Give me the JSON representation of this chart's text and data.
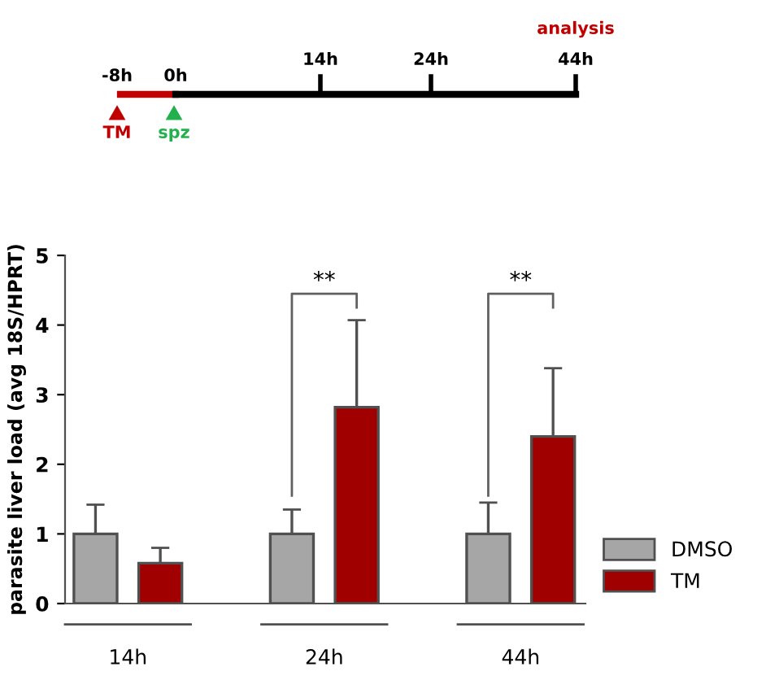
{
  "chart_data": {
    "type": "bar",
    "ylabel": "parasite liver load (avg 18S/HPRT)",
    "categories": [
      "14h",
      "24h",
      "44h"
    ],
    "series": [
      {
        "name": "DMSO",
        "color": "#a6a6a6",
        "values": [
          1,
          1,
          1
        ],
        "errors": [
          [
            1,
            1.42
          ],
          [
            1,
            1.35
          ],
          [
            1,
            1.45
          ]
        ]
      },
      {
        "name": "TM",
        "color": "#a00000",
        "values": [
          0.58,
          2.82,
          2.4
        ],
        "errors": [
          [
            0.58,
            0.8
          ],
          [
            2.82,
            4.07
          ],
          [
            2.4,
            3.38
          ]
        ]
      }
    ],
    "ylim": [
      0,
      5
    ],
    "yticks": [
      0,
      1,
      2,
      3,
      4,
      5
    ],
    "grid": false,
    "legend": "bottom right",
    "annotations": [
      "**",
      "**",
      "-8h",
      "0h",
      "14h",
      "24h",
      "44h",
      "analysis",
      "TM",
      "spz"
    ]
  }
}
